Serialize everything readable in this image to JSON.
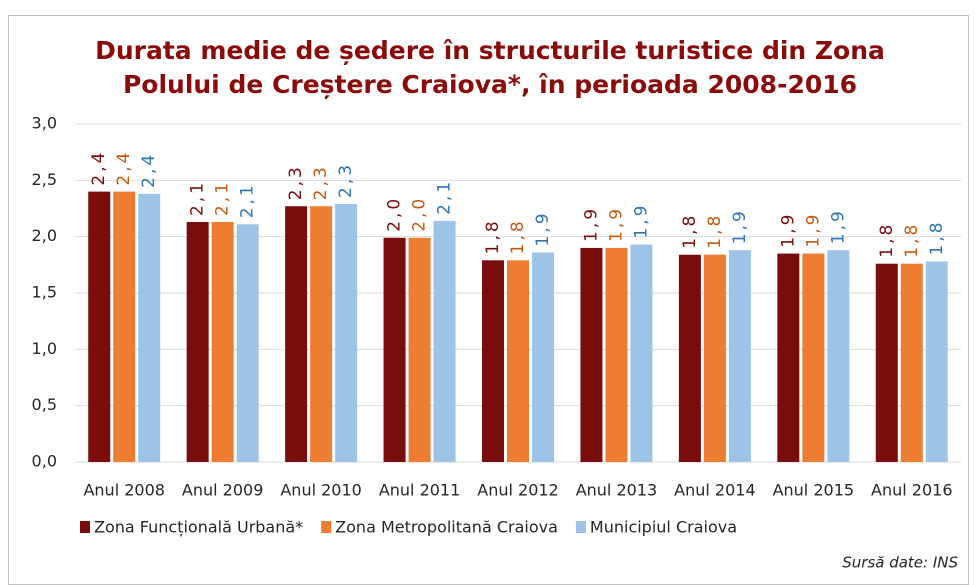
{
  "chart_data": {
    "type": "bar",
    "title": "Durata medie de ședere în structurile turistice din Zona Polului de Creștere Craiova*, în perioada 2008-2016",
    "categories": [
      "Anul 2008",
      "Anul 2009",
      "Anul 2010",
      "Anul 2011",
      "Anul 2012",
      "Anul 2013",
      "Anul 2014",
      "Anul 2015",
      "Anul 2016"
    ],
    "series": [
      {
        "name": "Zona Funcțională Urbană*",
        "color": "#7b0c0c",
        "values": [
          2.4,
          2.13,
          2.27,
          1.99,
          1.79,
          1.9,
          1.84,
          1.85,
          1.76
        ],
        "value_labels": [
          "2,4",
          "2,1",
          "2,3",
          "2,0",
          "1,8",
          "1,9",
          "1,8",
          "1,9",
          "1,8"
        ]
      },
      {
        "name": "Zona Metropolitană Craiova",
        "color": "#ed7d31",
        "values": [
          2.4,
          2.13,
          2.27,
          1.99,
          1.79,
          1.9,
          1.84,
          1.85,
          1.76
        ],
        "value_labels": [
          "2,4",
          "2,1",
          "2,3",
          "2,0",
          "1,8",
          "1,9",
          "1,8",
          "1,9",
          "1,8"
        ]
      },
      {
        "name": "Municipiul Craiova",
        "color": "#9dc3e6",
        "values": [
          2.38,
          2.11,
          2.29,
          2.14,
          1.86,
          1.93,
          1.88,
          1.88,
          1.78
        ],
        "value_labels": [
          "2,4",
          "2,1",
          "2,3",
          "2,1",
          "1,9",
          "1,9",
          "1,9",
          "1,9",
          "1,8"
        ]
      }
    ],
    "label_colors": [
      "#7b0c0c",
      "#c55a11",
      "#2e75b6"
    ],
    "ylim": [
      0,
      3
    ],
    "yticks": [
      {
        "value": 0,
        "label": "0,0"
      },
      {
        "value": 0.5,
        "label": "0,5"
      },
      {
        "value": 1,
        "label": "1,0"
      },
      {
        "value": 1.5,
        "label": "1,5"
      },
      {
        "value": 2,
        "label": "2,0"
      },
      {
        "value": 2.5,
        "label": "2,5"
      },
      {
        "value": 3,
        "label": "3,0"
      }
    ],
    "grid": true,
    "legend": "bottom",
    "source": "Sursă date: INS"
  }
}
